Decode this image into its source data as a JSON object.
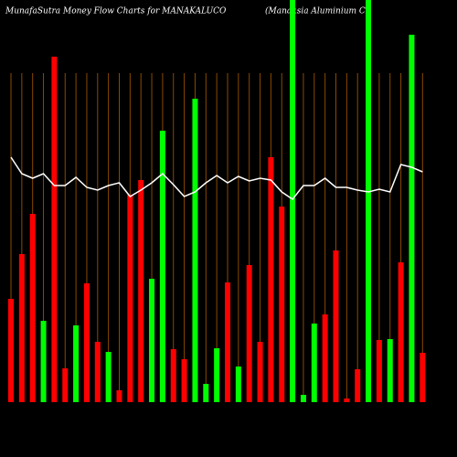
{
  "chart_data": {
    "type": "bar",
    "title": "MunafaSutra  Money Flow  Charts for MANAKALUCO",
    "subtitle": "(Manaksia  Aluminium C",
    "categories": [
      null,
      null,
      null,
      null,
      null,
      null,
      null,
      null,
      null,
      null,
      null,
      null,
      null,
      null,
      null,
      null,
      null,
      null,
      null,
      null,
      null,
      null,
      null,
      null,
      null,
      null,
      null,
      null,
      null,
      null,
      null,
      null,
      null,
      null,
      null,
      null,
      null,
      null,
      null
    ],
    "values": [
      113,
      162,
      206,
      89,
      378,
      37,
      84,
      130,
      66,
      55,
      13,
      227,
      243,
      135,
      297,
      58,
      47,
      332,
      20,
      59,
      131,
      39,
      150,
      66,
      268,
      214,
      460,
      8,
      86,
      96,
      166,
      4,
      36,
      460,
      68,
      69,
      153,
      402,
      54
    ],
    "colors": [
      "#ff0000",
      "#ff0000",
      "#ff0000",
      "#00ff00",
      "#ff0000",
      "#ff0000",
      "#00ff00",
      "#ff0000",
      "#ff0000",
      "#00ff00",
      "#ff0000",
      "#ff0000",
      "#ff0000",
      "#00ff00",
      "#00ff00",
      "#ff0000",
      "#ff0000",
      "#00ff00",
      "#00ff00",
      "#00ff00",
      "#ff0000",
      "#00ff00",
      "#ff0000",
      "#ff0000",
      "#ff0000",
      "#ff0000",
      "#00ff00",
      "#00ff00",
      "#00ff00",
      "#ff0000",
      "#ff0000",
      "#ff0000",
      "#ff0000",
      "#00ff00",
      "#ff0000",
      "#00ff00",
      "#ff0000",
      "#00ff00",
      "#ff0000"
    ],
    "line": {
      "color": "#ffffff",
      "values": [
        268,
        250,
        245,
        250,
        237,
        237,
        246,
        235,
        232,
        237,
        240,
        225,
        232,
        240,
        250,
        238,
        225,
        230,
        240,
        248,
        240,
        247,
        242,
        245,
        243,
        230,
        222,
        237,
        237,
        245,
        235,
        235,
        232,
        230,
        233,
        230,
        260,
        257,
        252
      ]
    },
    "grid": true
  }
}
